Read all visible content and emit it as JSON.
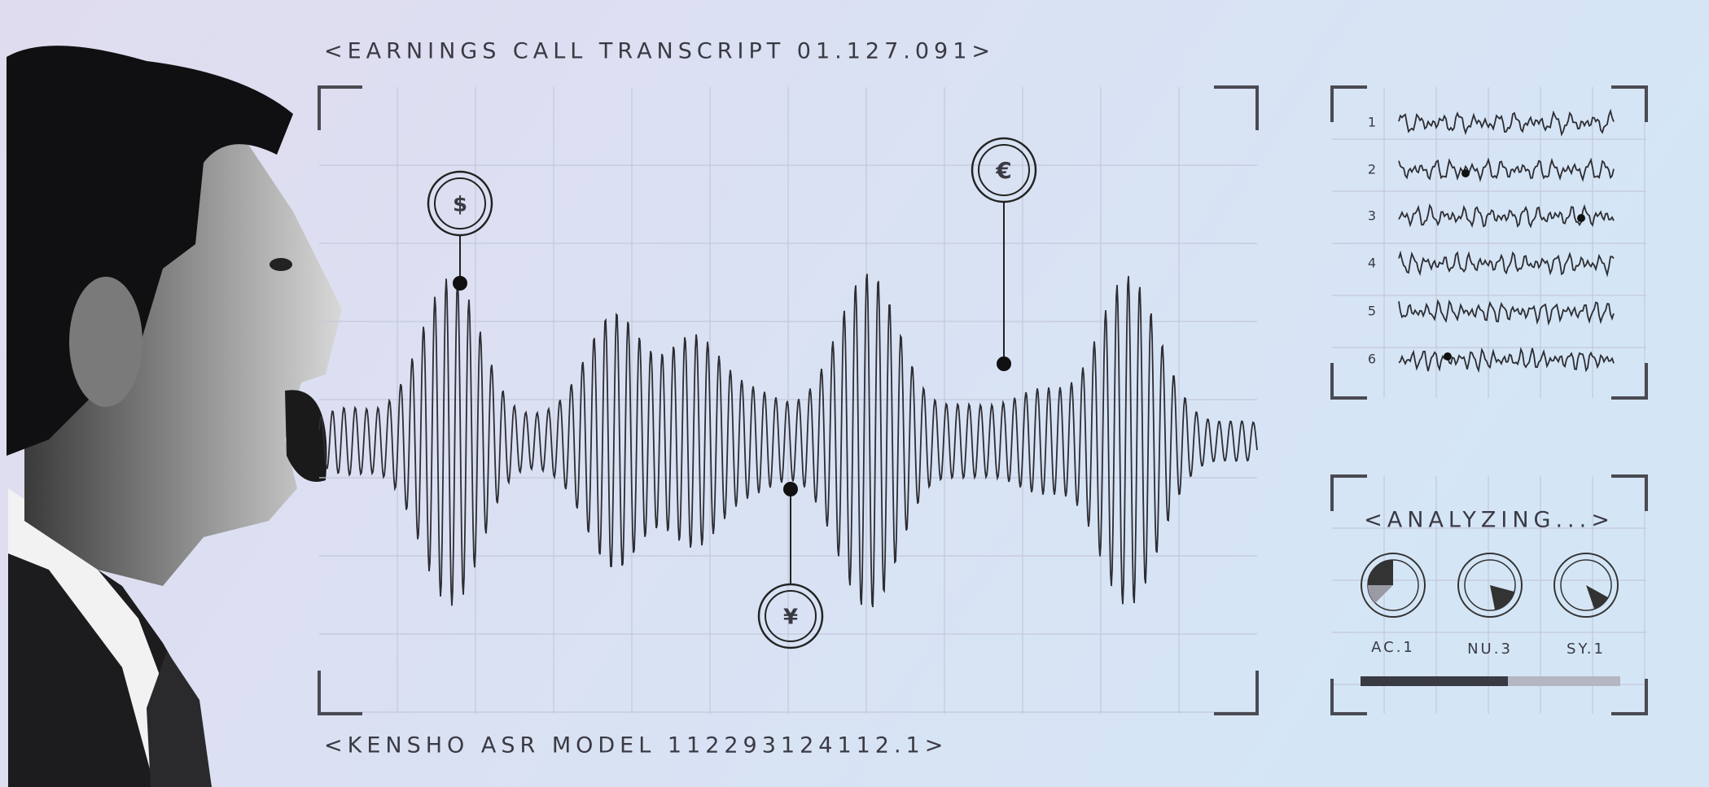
{
  "header": {
    "title": "<EARNINGS CALL TRANSCRIPT 01.127.091>"
  },
  "footer": {
    "model": "<KENSHO ASR MODEL 112293124112.1>"
  },
  "markers": [
    {
      "symbol": "$"
    },
    {
      "symbol": "€"
    },
    {
      "symbol": "¥"
    }
  ],
  "channels": {
    "labels": [
      "1",
      "2",
      "3",
      "4",
      "5",
      "6"
    ]
  },
  "analyzer": {
    "title": "<ANALYZING...>",
    "dials": [
      {
        "label": "AC.1"
      },
      {
        "label": "NU.3"
      },
      {
        "label": "SY.1"
      }
    ]
  }
}
